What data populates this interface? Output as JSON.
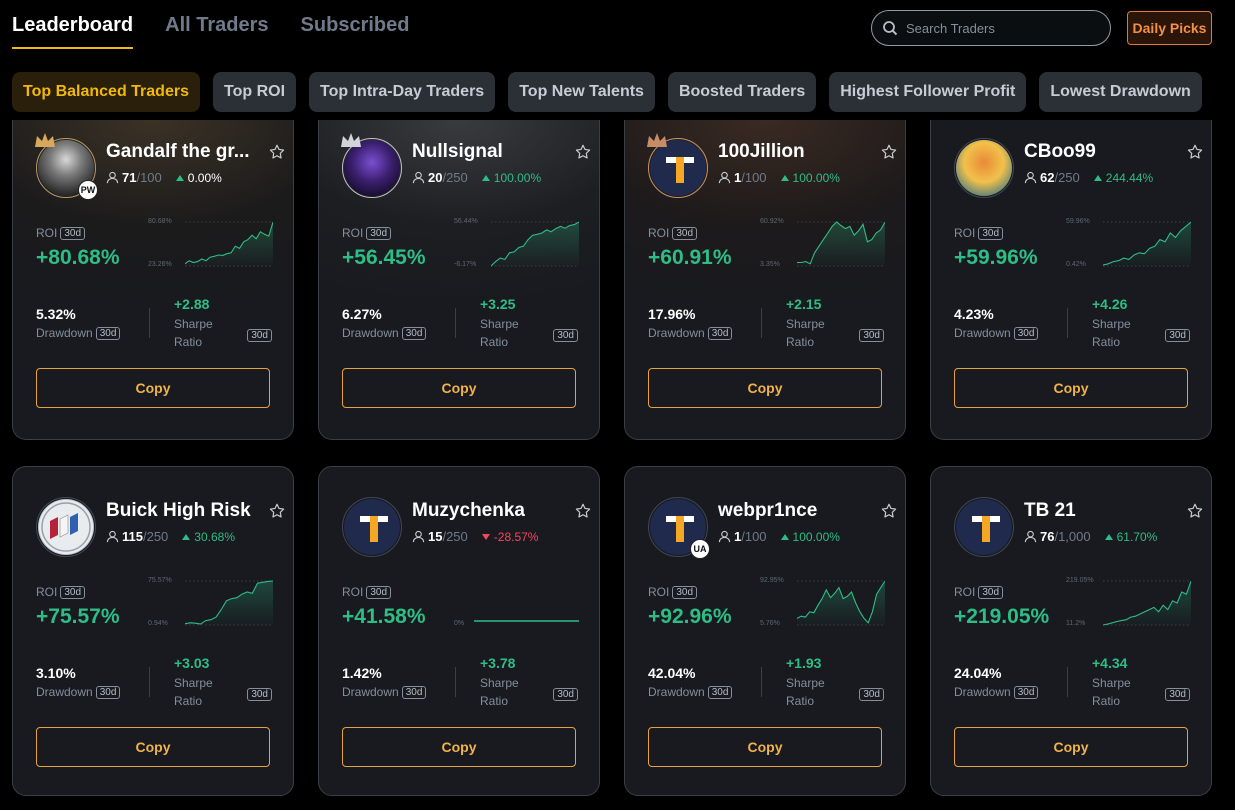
{
  "header": {
    "tabs": [
      {
        "label": "Leaderboard",
        "active": true
      },
      {
        "label": "All Traders",
        "active": false
      },
      {
        "label": "Subscribed",
        "active": false
      }
    ],
    "search": {
      "placeholder": "Search Traders",
      "value": "",
      "icon": "search-icon"
    },
    "daily_picks_label": "Daily Picks"
  },
  "filters": [
    {
      "label": "Top Balanced Traders",
      "active": true
    },
    {
      "label": "Top ROI",
      "active": false
    },
    {
      "label": "Top Intra-Day Traders",
      "active": false
    },
    {
      "label": "Top New Talents",
      "active": false
    },
    {
      "label": "Boosted Traders",
      "active": false
    },
    {
      "label": "Highest Follower Profit",
      "active": false
    },
    {
      "label": "Lowest Drawdown",
      "active": false
    }
  ],
  "labels": {
    "roi": "ROI",
    "period": "30d",
    "drawdown": "Drawdown",
    "sharpe_line1": "Sharpe",
    "sharpe_line2": "Ratio",
    "copy": "Copy"
  },
  "colors": {
    "accent": "#f0b90b",
    "positive": "#2ebd85",
    "negative": "#f6465d",
    "copy_border": "#e6a23a",
    "daily_picks": "#f0904a"
  },
  "traders": [
    {
      "name": "Gandalf the gr...",
      "rank": "gold",
      "badge": "PW",
      "followers": "71",
      "max": "/100",
      "change": "0.00%",
      "change_dir": "up",
      "roi": "+80.68%",
      "spark_max": "80.68%",
      "spark_min": "23.26%",
      "drawdown": "5.32%",
      "sharpe": "+2.88"
    },
    {
      "name": "Nullsignal",
      "rank": "silver",
      "badge": "",
      "followers": "20",
      "max": "/250",
      "change": "100.00%",
      "change_dir": "up",
      "roi": "+56.45%",
      "spark_max": "56.44%",
      "spark_min": "-6.17%",
      "drawdown": "6.27%",
      "sharpe": "+3.25"
    },
    {
      "name": "100Jillion",
      "rank": "bronze",
      "badge": "",
      "followers": "1",
      "max": "/100",
      "change": "100.00%",
      "change_dir": "up",
      "roi": "+60.91%",
      "spark_max": "60.92%",
      "spark_min": "3.35%",
      "drawdown": "17.96%",
      "sharpe": "+2.15"
    },
    {
      "name": "CBoo99",
      "rank": "",
      "badge": "",
      "followers": "62",
      "max": "/250",
      "change": "244.44%",
      "change_dir": "up",
      "roi": "+59.96%",
      "spark_max": "59.96%",
      "spark_min": "0.42%",
      "drawdown": "4.23%",
      "sharpe": "+4.26"
    },
    {
      "name": "Buick High Risk",
      "rank": "",
      "badge": "",
      "followers": "115",
      "max": "/250",
      "change": "30.68%",
      "change_dir": "up",
      "roi": "+75.57%",
      "spark_max": "75.57%",
      "spark_min": "0.94%",
      "drawdown": "3.10%",
      "sharpe": "+3.03"
    },
    {
      "name": "Muzychenka",
      "rank": "",
      "badge": "",
      "followers": "15",
      "max": "/250",
      "change": "-28.57%",
      "change_dir": "down",
      "roi": "+41.58%",
      "spark_max": "",
      "spark_min": "0%",
      "drawdown": "1.42%",
      "sharpe": "+3.78"
    },
    {
      "name": "webpr1nce",
      "rank": "",
      "badge": "UA",
      "followers": "1",
      "max": "/100",
      "change": "100.00%",
      "change_dir": "up",
      "roi": "+92.96%",
      "spark_max": "92.95%",
      "spark_min": "5.76%",
      "drawdown": "42.04%",
      "sharpe": "+1.93"
    },
    {
      "name": "TB 21",
      "rank": "",
      "badge": "",
      "followers": "76",
      "max": "/1,000",
      "change": "61.70%",
      "change_dir": "up",
      "roi": "+219.05%",
      "spark_max": "219.05%",
      "spark_min": "11.2%",
      "drawdown": "24.04%",
      "sharpe": "+4.34"
    }
  ]
}
